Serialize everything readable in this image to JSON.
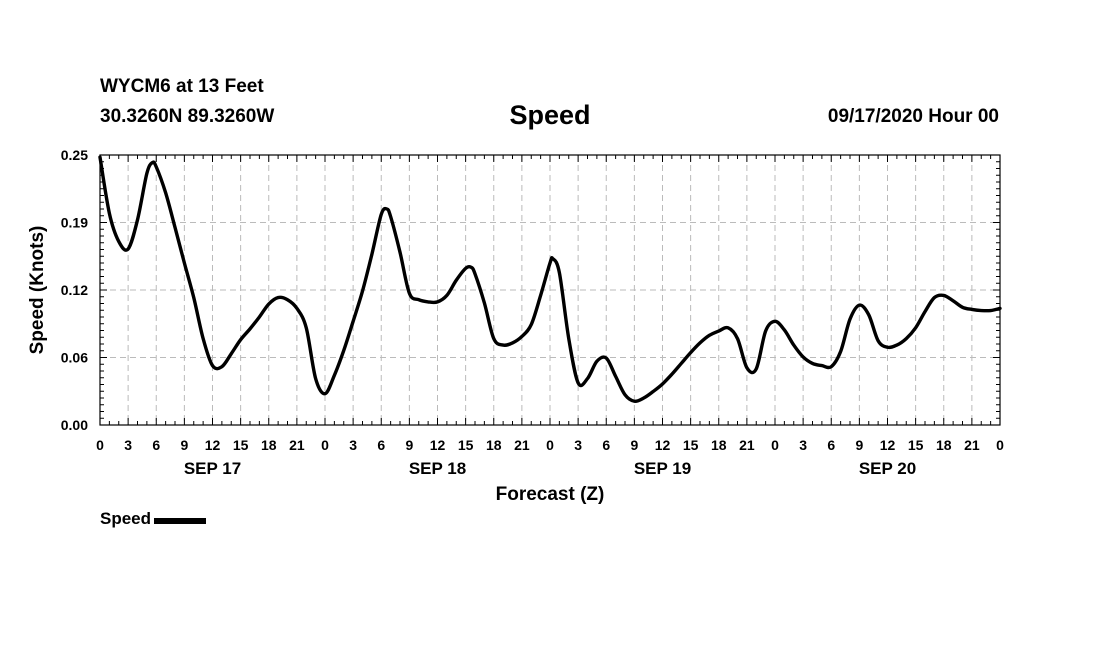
{
  "header": {
    "station": "WYCM6 at 13 Feet",
    "coords": "30.3260N 89.3260W",
    "title": "Speed",
    "run": "09/17/2020 Hour 00"
  },
  "legend": {
    "label": "Speed"
  },
  "chart_data": {
    "type": "line",
    "title": "Speed",
    "xlabel": "Forecast (Z)",
    "ylabel": "Speed (Knots)",
    "x_unit": "hours from 09/17/2020 00Z",
    "xlim": [
      0,
      96
    ],
    "ylim": [
      0,
      0.25
    ],
    "x_ticks": [
      0,
      3,
      6,
      9,
      12,
      15,
      18,
      21,
      24,
      27,
      30,
      33,
      36,
      39,
      42,
      45,
      48,
      51,
      54,
      57,
      60,
      63,
      66,
      69,
      72,
      75,
      78,
      81,
      84,
      87,
      90,
      93,
      96
    ],
    "x_tick_labels": [
      "0",
      "3",
      "6",
      "9",
      "12",
      "15",
      "18",
      "21",
      "0",
      "3",
      "6",
      "9",
      "12",
      "15",
      "18",
      "21",
      "0",
      "3",
      "6",
      "9",
      "12",
      "15",
      "18",
      "21",
      "0",
      "3",
      "6",
      "9",
      "12",
      "15",
      "18",
      "21",
      "0"
    ],
    "y_ticks": [
      0,
      0.0625,
      0.125,
      0.1875,
      0.25
    ],
    "y_tick_labels": [
      "0.00",
      "0.06",
      "0.12",
      "0.19",
      "0.25"
    ],
    "day_labels": [
      {
        "x": 12,
        "label": "SEP 17"
      },
      {
        "x": 36,
        "label": "SEP 18"
      },
      {
        "x": 60,
        "label": "SEP 19"
      },
      {
        "x": 84,
        "label": "SEP 20"
      }
    ],
    "grid": true,
    "legend_position": "bottom-left",
    "series": [
      {
        "name": "Speed",
        "color": "#000000",
        "points": [
          [
            0,
            0.248
          ],
          [
            1,
            0.196
          ],
          [
            2,
            0.17
          ],
          [
            3,
            0.163
          ],
          [
            4,
            0.19
          ],
          [
            5,
            0.233
          ],
          [
            5.6,
            0.243
          ],
          [
            6,
            0.239
          ],
          [
            7,
            0.215
          ],
          [
            8,
            0.183
          ],
          [
            9,
            0.15
          ],
          [
            10,
            0.118
          ],
          [
            11,
            0.08
          ],
          [
            12,
            0.055
          ],
          [
            13,
            0.054
          ],
          [
            14,
            0.066
          ],
          [
            15,
            0.079
          ],
          [
            16,
            0.089
          ],
          [
            17,
            0.1
          ],
          [
            18,
            0.112
          ],
          [
            19,
            0.118
          ],
          [
            20,
            0.116
          ],
          [
            21,
            0.108
          ],
          [
            22,
            0.09
          ],
          [
            23,
            0.043
          ],
          [
            24,
            0.029
          ],
          [
            25,
            0.046
          ],
          [
            26,
            0.069
          ],
          [
            27,
            0.096
          ],
          [
            28,
            0.124
          ],
          [
            29,
            0.158
          ],
          [
            30,
            0.195
          ],
          [
            30.6,
            0.2
          ],
          [
            31,
            0.193
          ],
          [
            32,
            0.16
          ],
          [
            33,
            0.122
          ],
          [
            34,
            0.116
          ],
          [
            35,
            0.114
          ],
          [
            36,
            0.114
          ],
          [
            37,
            0.12
          ],
          [
            38,
            0.134
          ],
          [
            39,
            0.145
          ],
          [
            39.6,
            0.146
          ],
          [
            40,
            0.14
          ],
          [
            41,
            0.113
          ],
          [
            42,
            0.08
          ],
          [
            43,
            0.074
          ],
          [
            44,
            0.076
          ],
          [
            45,
            0.082
          ],
          [
            46,
            0.093
          ],
          [
            47,
            0.12
          ],
          [
            48,
            0.15
          ],
          [
            48.3,
            0.154
          ],
          [
            49,
            0.141
          ],
          [
            50,
            0.08
          ],
          [
            51,
            0.039
          ],
          [
            52,
            0.043
          ],
          [
            53,
            0.059
          ],
          [
            54,
            0.062
          ],
          [
            55,
            0.045
          ],
          [
            56,
            0.028
          ],
          [
            57,
            0.022
          ],
          [
            58,
            0.025
          ],
          [
            59,
            0.031
          ],
          [
            60,
            0.038
          ],
          [
            61,
            0.047
          ],
          [
            62,
            0.057
          ],
          [
            63,
            0.067
          ],
          [
            64,
            0.076
          ],
          [
            65,
            0.083
          ],
          [
            66,
            0.087
          ],
          [
            67,
            0.09
          ],
          [
            68,
            0.08
          ],
          [
            69,
            0.053
          ],
          [
            70,
            0.052
          ],
          [
            71,
            0.087
          ],
          [
            72,
            0.096
          ],
          [
            73,
            0.088
          ],
          [
            74,
            0.074
          ],
          [
            75,
            0.063
          ],
          [
            76,
            0.057
          ],
          [
            77,
            0.055
          ],
          [
            78,
            0.054
          ],
          [
            79,
            0.068
          ],
          [
            80,
            0.098
          ],
          [
            81,
            0.111
          ],
          [
            82,
            0.102
          ],
          [
            83,
            0.078
          ],
          [
            84,
            0.072
          ],
          [
            85,
            0.074
          ],
          [
            86,
            0.08
          ],
          [
            87,
            0.09
          ],
          [
            88,
            0.105
          ],
          [
            89,
            0.118
          ],
          [
            90,
            0.12
          ],
          [
            91,
            0.115
          ],
          [
            92,
            0.109
          ],
          [
            93,
            0.107
          ],
          [
            94,
            0.106
          ],
          [
            95,
            0.106
          ],
          [
            96,
            0.108
          ]
        ]
      }
    ]
  }
}
